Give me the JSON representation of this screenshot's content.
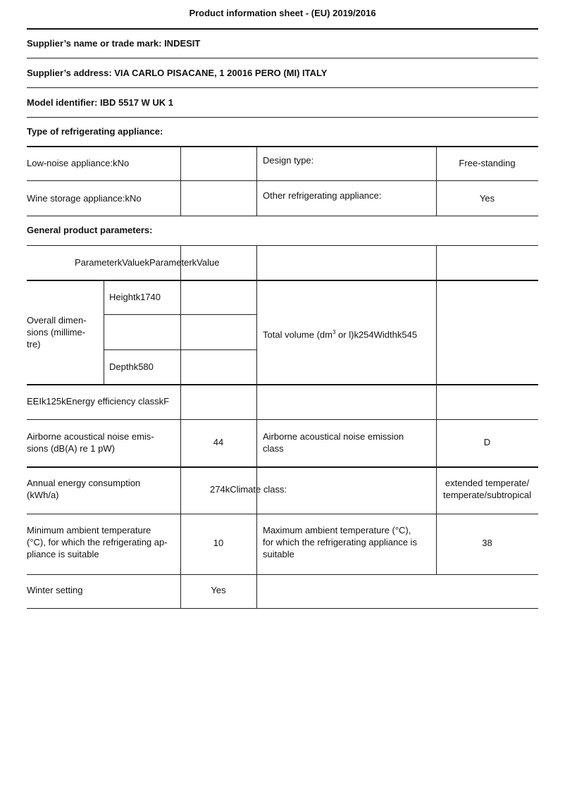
{
  "title": "Product information sheet - (EU) 2019/2016",
  "supplier_name": "Supplier’s name or trade mark: INDESIT",
  "supplier_address": "Supplier’s address: VIA CARLO PISACANE, 1 20016 PERO (MI) ITALY",
  "model_identifier": "Model identifier: IBD 5517 W UK 1",
  "type_heading": "Type of refrigerating appliance:",
  "type_rows": [
    {
      "label": "Low-noise appliance:kNo",
      "param": "Design type:",
      "value": "Free-standing"
    },
    {
      "label": "Wine storage appliance:kNo",
      "param": "Other refrigerating appliance:",
      "value": "Yes"
    }
  ],
  "general_heading": "General product parameters:",
  "param_header": "ParameterkValuekParameterkValue",
  "dimensions": {
    "label": "Overall dimen-\nsions (millime-\ntre)",
    "height": "Heightk1740",
    "depth": "Depthk580",
    "total_volume_pre": "Total volume (dm",
    "total_volume_sup": "3",
    "total_volume_post": " or l)k254Widthk545"
  },
  "eei": "EEIk125kEnergy efficiency classkF",
  "noise": {
    "label": "Airborne acoustical noise emis-\nsions (dB(A) re 1 pW)",
    "value": "44",
    "param": "Airborne acoustical noise emission\nclass",
    "param_value": "D"
  },
  "energy": {
    "label": "Annual energy consumption\n(kWh/a)",
    "value_merged": "274kClimate class:",
    "climate_value": "extended temperate/\ntemperate/subtropical"
  },
  "temps": {
    "min_label": "Minimum ambient temperature\n(°C), for which the refrigerating ap-\npliance is suitable",
    "min_value": "10",
    "max_label": "Maximum ambient temperature (°C),\nfor which the refrigerating appliance is\nsuitable",
    "max_value": "38"
  },
  "winter": {
    "label": "Winter setting",
    "value": "Yes"
  }
}
